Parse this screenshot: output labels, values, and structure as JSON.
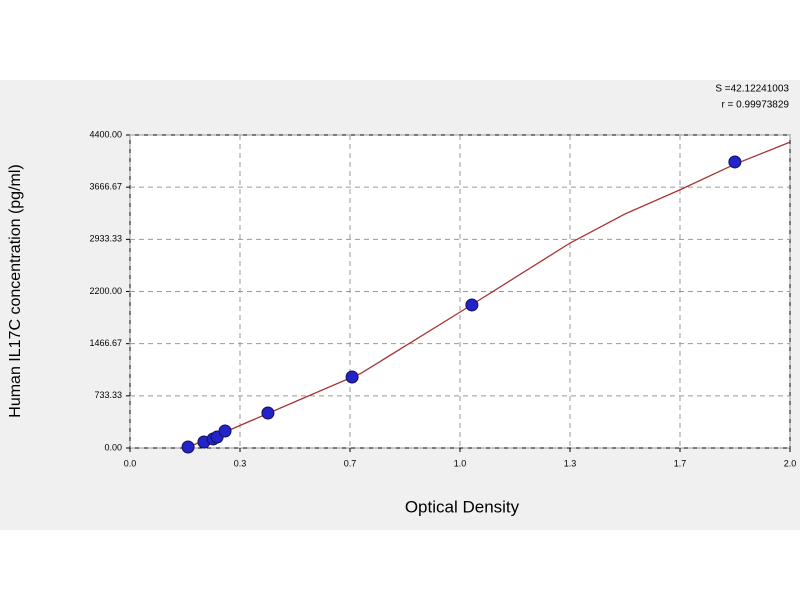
{
  "chart_data": {
    "type": "scatter",
    "xlabel": "Optical Density",
    "ylabel": "Human IL17C concentration (pg/ml)",
    "annotations": [
      "S =42.12241003",
      "r = 0.99973829"
    ],
    "xlim": [
      0,
      2
    ],
    "ylim": [
      0,
      4400
    ],
    "xticks": [
      {
        "value": 0,
        "label": "0.0"
      },
      {
        "value": 0.333333,
        "label": "0.3"
      },
      {
        "value": 0.666667,
        "label": "0.7"
      },
      {
        "value": 1,
        "label": "1.0"
      },
      {
        "value": 1.333333,
        "label": "1.3"
      },
      {
        "value": 1.666667,
        "label": "1.7"
      },
      {
        "value": 2,
        "label": "2.0"
      }
    ],
    "yticks": [
      {
        "value": 0,
        "label": "0.00"
      },
      {
        "value": 733.33,
        "label": "733.33"
      },
      {
        "value": 1466.67,
        "label": "1466.67"
      },
      {
        "value": 2200,
        "label": "2200.00"
      },
      {
        "value": 2933.33,
        "label": "2933.33"
      },
      {
        "value": 3666.67,
        "label": "3666.67"
      },
      {
        "value": 4400,
        "label": "4400.00"
      }
    ],
    "grid": true,
    "series": [
      {
        "color": "#2323c8",
        "x": [
          0.176,
          0.224,
          0.252,
          0.264,
          0.288,
          0.418,
          0.673,
          1.036,
          1.833
        ],
        "values": [
          14,
          84,
          127,
          155,
          239,
          492,
          998,
          2011,
          4021
        ]
      }
    ],
    "curve": {
      "color": "#a83232",
      "x": [
        0.17,
        0.3,
        0.5,
        0.7,
        1.0,
        1.333,
        1.5,
        1.667,
        1.833,
        2.0
      ],
      "values": [
        0,
        250,
        650,
        1050,
        1910,
        2880,
        3290,
        3630,
        3990,
        4300
      ]
    }
  }
}
